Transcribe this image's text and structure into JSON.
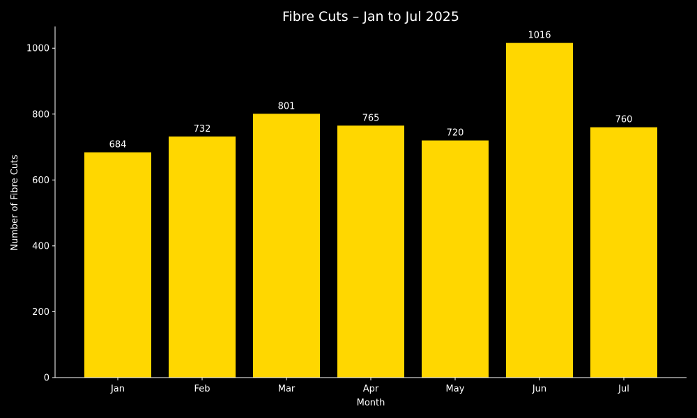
{
  "chart_data": {
    "type": "bar",
    "title": "Fibre Cuts – Jan to Jul 2025",
    "xlabel": "Month",
    "ylabel": "Number of Fibre Cuts",
    "categories": [
      "Jan",
      "Feb",
      "Mar",
      "Apr",
      "May",
      "Jun",
      "Jul"
    ],
    "values": [
      684,
      732,
      801,
      765,
      720,
      1016,
      760
    ],
    "data_labels": [
      "684",
      "732",
      "801",
      "765",
      "720",
      "1016",
      "760"
    ],
    "ylim": [
      0,
      1066
    ],
    "yticks": [
      0,
      200,
      400,
      600,
      800,
      1000
    ],
    "ytick_labels": [
      "0",
      "200",
      "400",
      "600",
      "800",
      "1000"
    ],
    "grid": false,
    "legend": "none",
    "colors": {
      "background": "#000000",
      "bar": "#FFD700",
      "text": "#ffffff",
      "axis": "#ffffff"
    }
  }
}
